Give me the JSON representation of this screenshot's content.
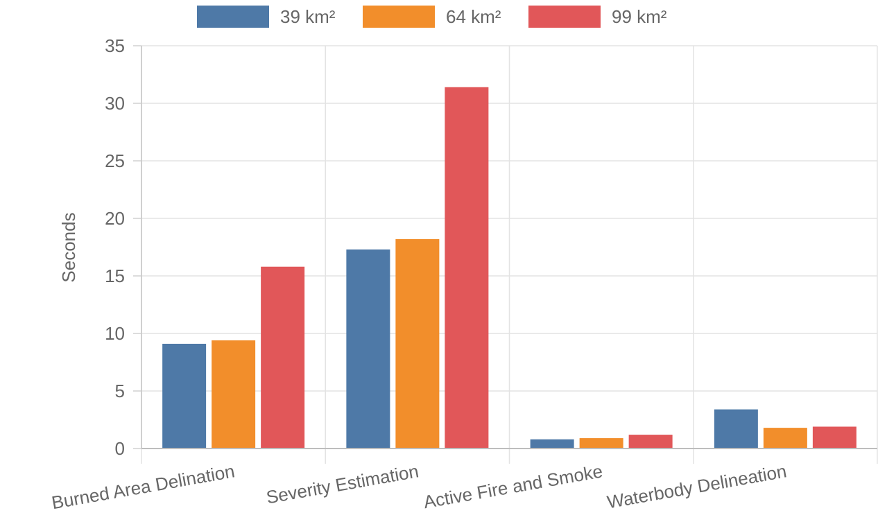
{
  "chart_data": {
    "type": "bar",
    "categories": [
      "Burned Area Delination",
      "Severity Estimation",
      "Active Fire and Smoke",
      "Waterbody Delineation"
    ],
    "series": [
      {
        "name": "39 km²",
        "color": "#4e79a7",
        "values": [
          9.1,
          17.3,
          0.8,
          3.4
        ]
      },
      {
        "name": "64 km²",
        "color": "#f28e2b",
        "values": [
          9.4,
          18.2,
          0.9,
          1.8
        ]
      },
      {
        "name": "99 km²",
        "color": "#e15759",
        "values": [
          15.8,
          31.4,
          1.2,
          1.9
        ]
      }
    ],
    "ylabel": "Seconds",
    "xlabel": "",
    "ylim": [
      0,
      35
    ],
    "yticks": [
      0,
      5,
      10,
      15,
      20,
      25,
      30,
      35
    ],
    "grid": true,
    "legend_position": "top-center"
  }
}
